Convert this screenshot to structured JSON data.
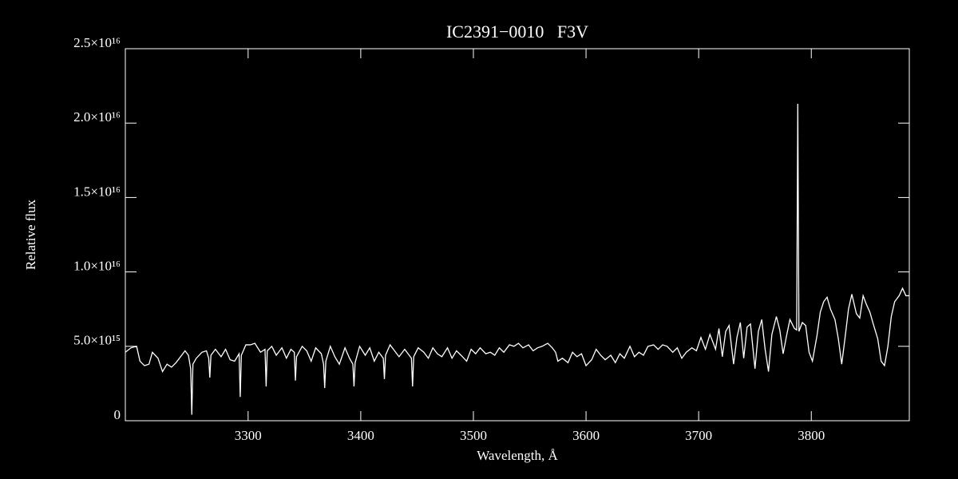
{
  "chart_data": {
    "type": "line",
    "title": "IC2391−0010   F3V",
    "xlabel": "Wavelength, Å",
    "ylabel": "Relative flux",
    "color": "#ffffff",
    "xlim": [
      3191,
      3887
    ],
    "xticks": [
      3300,
      3400,
      3500,
      3600,
      3700,
      3800
    ],
    "ylim": [
      0,
      2.5e+16
    ],
    "yticks": [
      0,
      {
        "value": 5000000000000000.0,
        "label": "5.0×10¹⁵"
      },
      {
        "value": 1e+16,
        "label": "1.0×10¹⁶"
      },
      {
        "value": 1.5e+16,
        "label": "1.5×10¹⁶"
      },
      {
        "value": 2e+16,
        "label": "2.0×10¹⁶"
      },
      {
        "value": 2.5e+16,
        "label": "2.5×10¹⁶"
      }
    ],
    "x": [
      3191,
      3196,
      3201,
      3204,
      3208,
      3212,
      3215,
      3220,
      3224,
      3228,
      3232,
      3236,
      3241,
      3244,
      3247,
      3249,
      3250,
      3251,
      3254,
      3259,
      3263,
      3265,
      3266,
      3267,
      3271,
      3276,
      3280,
      3284,
      3288,
      3292,
      3293,
      3294,
      3298,
      3302,
      3306,
      3311,
      3315,
      3316,
      3317,
      3321,
      3325,
      3330,
      3334,
      3338,
      3341,
      3342,
      3343,
      3348,
      3352,
      3356,
      3360,
      3365,
      3367,
      3368,
      3369,
      3373,
      3377,
      3381,
      3386,
      3390,
      3393,
      3394,
      3395,
      3399,
      3404,
      3408,
      3412,
      3416,
      3420,
      3421,
      3422,
      3426,
      3430,
      3434,
      3439,
      3443,
      3445,
      3446,
      3447,
      3451,
      3456,
      3460,
      3464,
      3468,
      3472,
      3477,
      3481,
      3485,
      3489,
      3494,
      3498,
      3502,
      3506,
      3511,
      3515,
      3519,
      3523,
      3527,
      3532,
      3536,
      3540,
      3544,
      3549,
      3553,
      3557,
      3561,
      3566,
      3570,
      3573,
      3575,
      3579,
      3584,
      3588,
      3592,
      3596,
      3600,
      3605,
      3609,
      3613,
      3617,
      3622,
      3626,
      3630,
      3634,
      3639,
      3643,
      3647,
      3651,
      3655,
      3660,
      3664,
      3668,
      3672,
      3677,
      3681,
      3685,
      3689,
      3694,
      3698,
      3702,
      3706,
      3710,
      3715,
      3718,
      3721,
      3724,
      3727,
      3731,
      3734,
      3737,
      3740,
      3743,
      3746,
      3750,
      3753,
      3756,
      3759,
      3762,
      3765,
      3769,
      3772,
      3775,
      3778,
      3781,
      3785,
      3787,
      3788,
      3789,
      3792,
      3795,
      3798,
      3801,
      3805,
      3808,
      3811,
      3814,
      3817,
      3821,
      3824,
      3827,
      3830,
      3833,
      3836,
      3840,
      3843,
      3846,
      3849,
      3852,
      3855,
      3859,
      3862,
      3865,
      3868,
      3871,
      3874,
      3878,
      3881,
      3884,
      3887
    ],
    "values": [
      4600000000000000.0,
      4900000000000000.0,
      5000000000000000.0,
      4000000000000000.0,
      3700000000000000.0,
      3800000000000000.0,
      4600000000000000.0,
      4200000000000000.0,
      3300000000000000.0,
      3800000000000000.0,
      3600000000000000.0,
      3900000000000000.0,
      4400000000000000.0,
      4700000000000000.0,
      4400000000000000.0,
      3500000000000000.0,
      400000000000000.0,
      3800000000000000.0,
      4200000000000000.0,
      4600000000000000.0,
      4700000000000000.0,
      4200000000000000.0,
      2900000000000000.0,
      4400000000000000.0,
      4800000000000000.0,
      4300000000000000.0,
      4800000000000000.0,
      4100000000000000.0,
      4000000000000000.0,
      4500000000000000.0,
      1600000000000000.0,
      4400000000000000.0,
      5100000000000000.0,
      5100000000000000.0,
      5200000000000000.0,
      4600000000000000.0,
      4800000000000000.0,
      2300000000000000.0,
      4700000000000000.0,
      5000000000000000.0,
      4400000000000000.0,
      4900000000000000.0,
      4200000000000000.0,
      4800000000000000.0,
      4600000000000000.0,
      2700000000000000.0,
      4300000000000000.0,
      5000000000000000.0,
      4700000000000000.0,
      4000000000000000.0,
      4900000000000000.0,
      4500000000000000.0,
      3800000000000000.0,
      2200000000000000.0,
      4000000000000000.0,
      5000000000000000.0,
      4300000000000000.0,
      3800000000000000.0,
      4900000000000000.0,
      4200000000000000.0,
      3800000000000000.0,
      2300000000000000.0,
      3900000000000000.0,
      5000000000000000.0,
      4400000000000000.0,
      4900000000000000.0,
      4000000000000000.0,
      4600000000000000.0,
      4200000000000000.0,
      2800000000000000.0,
      4400000000000000.0,
      5100000000000000.0,
      4700000000000000.0,
      4300000000000000.0,
      4800000000000000.0,
      4400000000000000.0,
      4200000000000000.0,
      2300000000000000.0,
      4300000000000000.0,
      4900000000000000.0,
      4600000000000000.0,
      4200000000000000.0,
      4900000000000000.0,
      4500000000000000.0,
      4300000000000000.0,
      4900000000000000.0,
      4200000000000000.0,
      4700000000000000.0,
      4400000000000000.0,
      4000000000000000.0,
      4800000000000000.0,
      4500000000000000.0,
      4900000000000000.0,
      4500000000000000.0,
      4600000000000000.0,
      4400000000000000.0,
      4900000000000000.0,
      4600000000000000.0,
      5100000000000000.0,
      5000000000000000.0,
      5200000000000000.0,
      4900000000000000.0,
      5100000000000000.0,
      4700000000000000.0,
      4900000000000000.0,
      5000000000000000.0,
      5200000000000000.0,
      4900000000000000.0,
      4600000000000000.0,
      4000000000000000.0,
      4200000000000000.0,
      3900000000000000.0,
      4600000000000000.0,
      4300000000000000.0,
      4500000000000000.0,
      3700000000000000.0,
      4100000000000000.0,
      4800000000000000.0,
      4400000000000000.0,
      4100000000000000.0,
      4400000000000000.0,
      3900000000000000.0,
      4500000000000000.0,
      4200000000000000.0,
      5000000000000000.0,
      4300000000000000.0,
      4600000000000000.0,
      4400000000000000.0,
      5000000000000000.0,
      5100000000000000.0,
      4800000000000000.0,
      5100000000000000.0,
      5000000000000000.0,
      4600000000000000.0,
      4900000000000000.0,
      4200000000000000.0,
      4600000000000000.0,
      4900000000000000.0,
      4700000000000000.0,
      5600000000000000.0,
      4800000000000000.0,
      5800000000000000.0,
      4800000000000000.0,
      6200000000000000.0,
      4300000000000000.0,
      6000000000000000.0,
      6400000000000000.0,
      3800000000000000.0,
      5600000000000000.0,
      6600000000000000.0,
      4200000000000000.0,
      6300000000000000.0,
      6500000000000000.0,
      3500000000000000.0,
      6000000000000000.0,
      6800000000000000.0,
      4800000000000000.0,
      3300000000000000.0,
      5800000000000000.0,
      7000000000000000.0,
      6100000000000000.0,
      4500000000000000.0,
      5700000000000000.0,
      6800000000000000.0,
      6200000000000000.0,
      6100000000000000.0,
      2.13e+16,
      6000000000000000.0,
      6600000000000000.0,
      6400000000000000.0,
      4600000000000000.0,
      4000000000000000.0,
      5700000000000000.0,
      7300000000000000.0,
      8000000000000000.0,
      8300000000000000.0,
      7500000000000000.0,
      6800000000000000.0,
      5500000000000000.0,
      3800000000000000.0,
      5600000000000000.0,
      7500000000000000.0,
      8500000000000000.0,
      7200000000000000.0,
      6900000000000000.0,
      8400000000000000.0,
      7800000000000000.0,
      7300000000000000.0,
      6500000000000000.0,
      5500000000000000.0,
      4000000000000000.0,
      3700000000000000.0,
      5000000000000000.0,
      7000000000000000.0,
      8000000000000000.0,
      8400000000000000.0,
      8900000000000000.0,
      8400000000000000.0,
      8400000000000000.0
    ]
  }
}
